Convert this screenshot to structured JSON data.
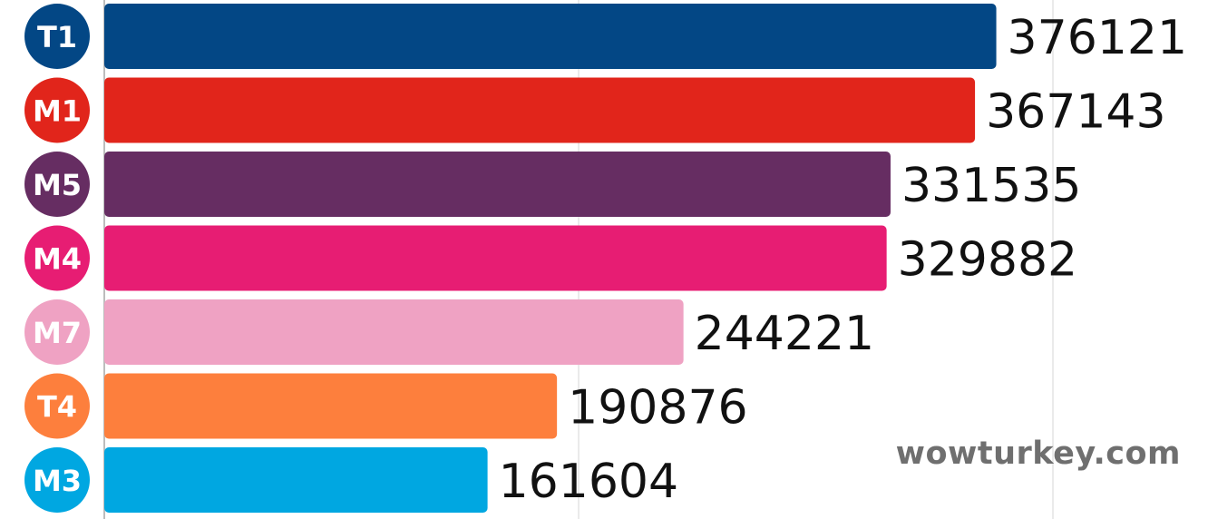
{
  "chart_data": {
    "type": "bar",
    "orientation": "horizontal",
    "categories": [
      "T1",
      "M1",
      "M5",
      "M4",
      "M7",
      "T4",
      "M3"
    ],
    "values": [
      376121,
      367143,
      331535,
      329882,
      244221,
      190876,
      161604
    ],
    "colors": [
      "#034785",
      "#e1251b",
      "#662d62",
      "#e71d73",
      "#efa2c3",
      "#fd7f3d",
      "#00a7e1"
    ],
    "xlim": [
      0,
      400000
    ],
    "grid": true,
    "title": "",
    "xlabel": "",
    "ylabel": ""
  },
  "watermark": "wowturkey.com"
}
